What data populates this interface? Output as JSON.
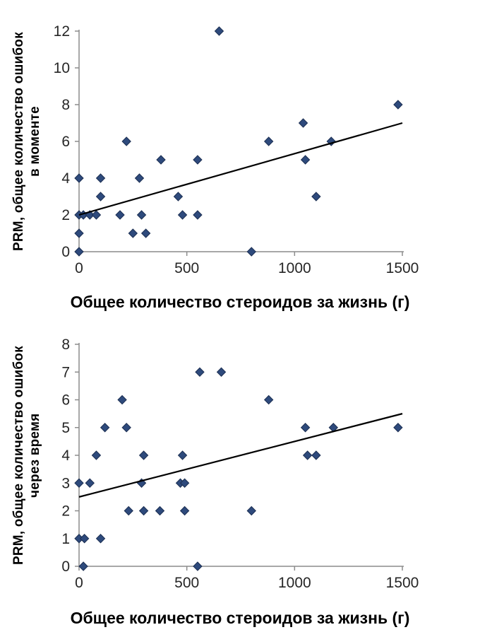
{
  "page": {
    "background": "#ffffff"
  },
  "chart_data": [
    {
      "type": "scatter",
      "title": "",
      "xlabel": "Общее количество стероидов за жизнь (г)",
      "ylabel": "PRM, общее количество ошибок в моменте",
      "xlim": [
        0,
        1500
      ],
      "ylim": [
        0,
        12
      ],
      "xticks": [
        0,
        500,
        1000,
        1500
      ],
      "yticks": [
        0,
        2,
        4,
        6,
        8,
        10,
        12
      ],
      "grid": "off",
      "legend": "none",
      "marker": "diamond",
      "marker_color": "#2E4A7C",
      "marker_edge": "#1C2F52",
      "axis_color": "#8C8C8C",
      "tick_label_color": "#262626",
      "trendline": {
        "x": [
          0,
          1500
        ],
        "y": [
          2.0,
          7.0
        ],
        "color": "#000000"
      },
      "points": [
        [
          0,
          0
        ],
        [
          800,
          0
        ],
        [
          0,
          1
        ],
        [
          250,
          1
        ],
        [
          310,
          1
        ],
        [
          0,
          2
        ],
        [
          20,
          2
        ],
        [
          50,
          2
        ],
        [
          80,
          2
        ],
        [
          190,
          2
        ],
        [
          290,
          2
        ],
        [
          480,
          2
        ],
        [
          550,
          2
        ],
        [
          100,
          3
        ],
        [
          460,
          3
        ],
        [
          1100,
          3
        ],
        [
          0,
          4
        ],
        [
          100,
          4
        ],
        [
          280,
          4
        ],
        [
          380,
          5
        ],
        [
          550,
          5
        ],
        [
          1050,
          5
        ],
        [
          220,
          6
        ],
        [
          880,
          6
        ],
        [
          1170,
          6
        ],
        [
          1040,
          7
        ],
        [
          1480,
          8
        ],
        [
          650,
          12
        ]
      ]
    },
    {
      "type": "scatter",
      "title": "",
      "xlabel": "Общее количество стероидов за жизнь (г)",
      "ylabel": "PRM, общее количество ошибок через время",
      "xlim": [
        0,
        1500
      ],
      "ylim": [
        0,
        8
      ],
      "xticks": [
        0,
        500,
        1000,
        1500
      ],
      "yticks": [
        0,
        1,
        2,
        3,
        4,
        5,
        6,
        7,
        8
      ],
      "grid": "off",
      "legend": "none",
      "marker": "diamond",
      "marker_color": "#2E4A7C",
      "marker_edge": "#1C2F52",
      "axis_color": "#8C8C8C",
      "tick_label_color": "#262626",
      "trendline": {
        "x": [
          0,
          1500
        ],
        "y": [
          2.5,
          5.5
        ],
        "color": "#000000"
      },
      "points": [
        [
          20,
          0
        ],
        [
          550,
          0
        ],
        [
          0,
          1
        ],
        [
          25,
          1
        ],
        [
          100,
          1
        ],
        [
          230,
          2
        ],
        [
          300,
          2
        ],
        [
          375,
          2
        ],
        [
          490,
          2
        ],
        [
          800,
          2
        ],
        [
          0,
          3
        ],
        [
          50,
          3
        ],
        [
          290,
          3
        ],
        [
          470,
          3
        ],
        [
          490,
          3
        ],
        [
          80,
          4
        ],
        [
          300,
          4
        ],
        [
          480,
          4
        ],
        [
          1060,
          4
        ],
        [
          1100,
          4
        ],
        [
          120,
          5
        ],
        [
          220,
          5
        ],
        [
          1050,
          5
        ],
        [
          1180,
          5
        ],
        [
          1480,
          5
        ],
        [
          200,
          6
        ],
        [
          880,
          6
        ],
        [
          560,
          7
        ],
        [
          660,
          7
        ]
      ]
    }
  ]
}
